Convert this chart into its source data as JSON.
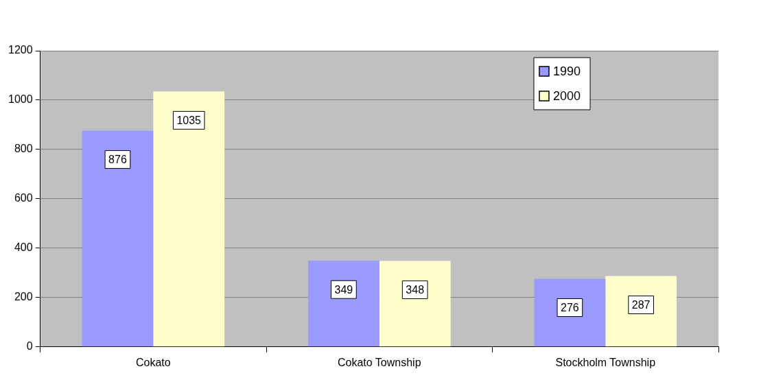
{
  "chart_data": {
    "type": "bar",
    "categories": [
      "Cokato",
      "Cokato Township",
      "Stockholm Township"
    ],
    "series": [
      {
        "name": "1990",
        "color": "#9999ff",
        "values": [
          876,
          349,
          276
        ]
      },
      {
        "name": "2000",
        "color": "#ffffcc",
        "values": [
          1035,
          348,
          287
        ]
      }
    ],
    "ylim": [
      0,
      1200
    ],
    "yticks": [
      0,
      200,
      400,
      600,
      800,
      1000,
      1200
    ],
    "grid": "y",
    "legend": "top right",
    "data_labels": true
  }
}
